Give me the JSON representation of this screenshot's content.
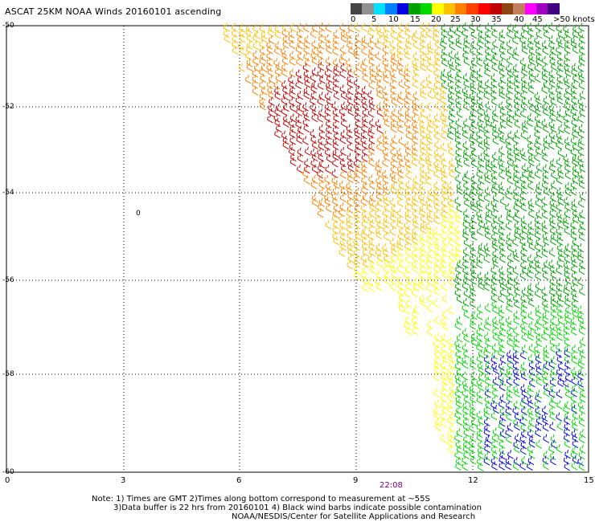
{
  "title": "ASCAT 25KM NOAA Winds 20160101 ascending",
  "scale": {
    "ticks": [
      "0",
      "5",
      "10",
      "15",
      "20",
      "25",
      "30",
      "35",
      "40",
      "45",
      ">50 knots"
    ],
    "colors": [
      "#444444",
      "#909090",
      "#00e0ff",
      "#0080ff",
      "#0000e0",
      "#00a000",
      "#00d800",
      "#ffff00",
      "#ffc000",
      "#ff8000",
      "#ff4000",
      "#ff0000",
      "#c00000",
      "#8b4513",
      "#c08060",
      "#ff00ff",
      "#a000c0",
      "#400080"
    ]
  },
  "map": {
    "lat_labels": [
      "-50",
      "-52",
      "-54",
      "-56",
      "-58",
      "-60"
    ],
    "lon_labels": [
      "0",
      "3",
      "6",
      "9",
      "12",
      "15"
    ],
    "time_label": "22:08",
    "contour_label": "0"
  },
  "notes": {
    "line1": "Note: 1) Times are GMT 2)Times along bottom correspond to measurement at ~55S",
    "line2": "3)Data buffer is 22 hrs from 20160101 4) Black wind barbs indicate possible contamination",
    "line3": "NOAA/NESDIS/Center for Satellite Applications and Research"
  }
}
